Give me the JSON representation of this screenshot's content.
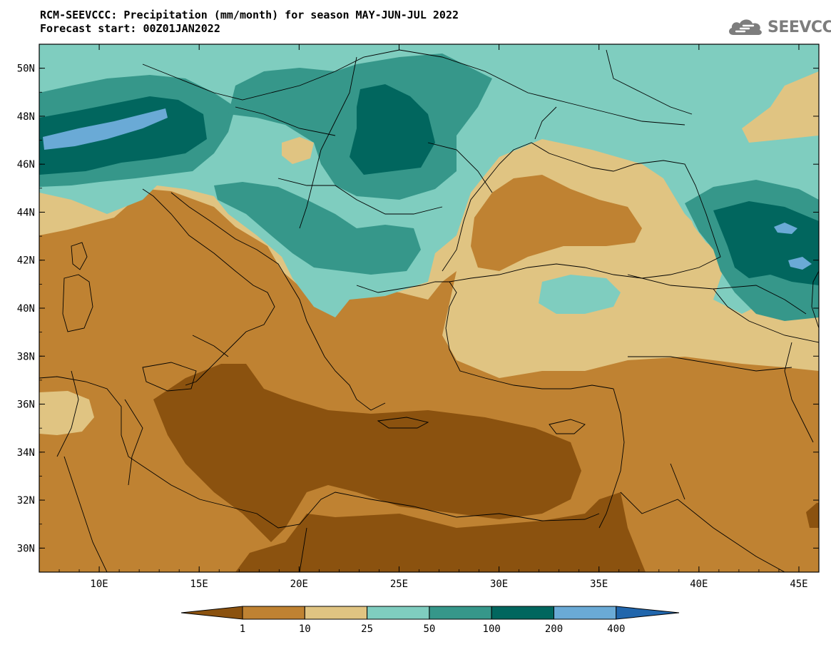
{
  "header": {
    "title_line1": "RCM-SEEVCCC: Precipitation (mm/month) for season MAY-JUN-JUL 2022",
    "title_line2": "Forecast start: 00Z01JAN2022",
    "logo_text": "SEEVCCC",
    "logo_icon": "cloud-icon"
  },
  "map": {
    "lon_range": [
      7,
      46
    ],
    "lat_range": [
      29,
      51
    ],
    "lon_ticks": [
      "10E",
      "15E",
      "20E",
      "25E",
      "30E",
      "35E",
      "40E",
      "45E"
    ],
    "lon_tick_values": [
      10,
      15,
      20,
      25,
      30,
      35,
      40,
      45
    ],
    "lat_ticks": [
      "50N",
      "48N",
      "46N",
      "44N",
      "42N",
      "40N",
      "38N",
      "36N",
      "34N",
      "32N",
      "30N"
    ],
    "lat_tick_values": [
      50,
      48,
      46,
      44,
      42,
      40,
      38,
      36,
      34,
      32,
      30
    ],
    "background_class": "10-25"
  },
  "legend": {
    "labels": [
      "1",
      "10",
      "25",
      "50",
      "100",
      "200",
      "400"
    ],
    "colors": [
      "#8b520f",
      "#bf8232",
      "#e0c482",
      "#7fcdbf",
      "#36978a",
      "#01665e",
      "#6aaad6",
      "#2166ac"
    ]
  }
}
